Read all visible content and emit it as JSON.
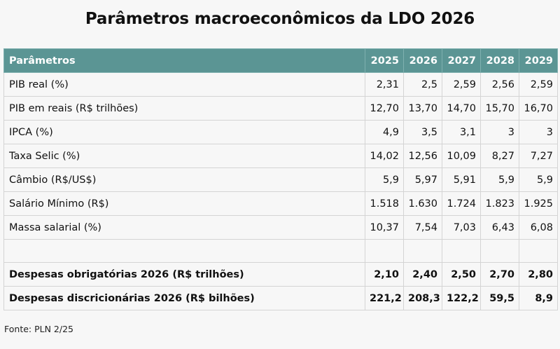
{
  "title": "Parâmetros macroeconômicos da LDO 2026",
  "table": {
    "header_label": "Parâmetros",
    "years": [
      "2025",
      "2026",
      "2027",
      "2028",
      "2029"
    ],
    "rows": [
      {
        "label": "PIB real (%)",
        "values": [
          "2,31",
          "2,5",
          "2,59",
          "2,56",
          "2,59"
        ]
      },
      {
        "label": "PIB em reais (R$ trilhões)",
        "values": [
          "12,70",
          "13,70",
          "14,70",
          "15,70",
          "16,70"
        ]
      },
      {
        "label": "IPCA (%)",
        "values": [
          "4,9",
          "3,5",
          "3,1",
          "3",
          "3"
        ]
      },
      {
        "label": "Taxa Selic (%)",
        "values": [
          "14,02",
          "12,56",
          "10,09",
          "8,27",
          "7,27"
        ]
      },
      {
        "label": "Câmbio (R$/US$)",
        "values": [
          "5,9",
          "5,97",
          "5,91",
          "5,9",
          "5,9"
        ]
      },
      {
        "label": "Salário Mínimo (R$)",
        "values": [
          "1.518",
          "1.630",
          "1.724",
          "1.823",
          "1.925"
        ]
      },
      {
        "label": "Massa salarial (%)",
        "values": [
          "10,37",
          "7,54",
          "7,03",
          "6,43",
          "6,08"
        ]
      }
    ],
    "summary_rows": [
      {
        "label": "Despesas obrigatórias 2026 (R$ trilhões)",
        "values": [
          "2,10",
          "2,40",
          "2,50",
          "2,70",
          "2,80"
        ]
      },
      {
        "label": "Despesas discricionárias 2026 (R$ bilhões)",
        "values": [
          "221,2",
          "208,3",
          "122,2",
          "59,5",
          "8,9"
        ]
      }
    ]
  },
  "source": "Fonte: PLN 2/25",
  "colors": {
    "header_bg": "#5b9594",
    "header_text": "#ffffff",
    "background": "#f7f7f7",
    "grid": "#d4d4d4"
  }
}
